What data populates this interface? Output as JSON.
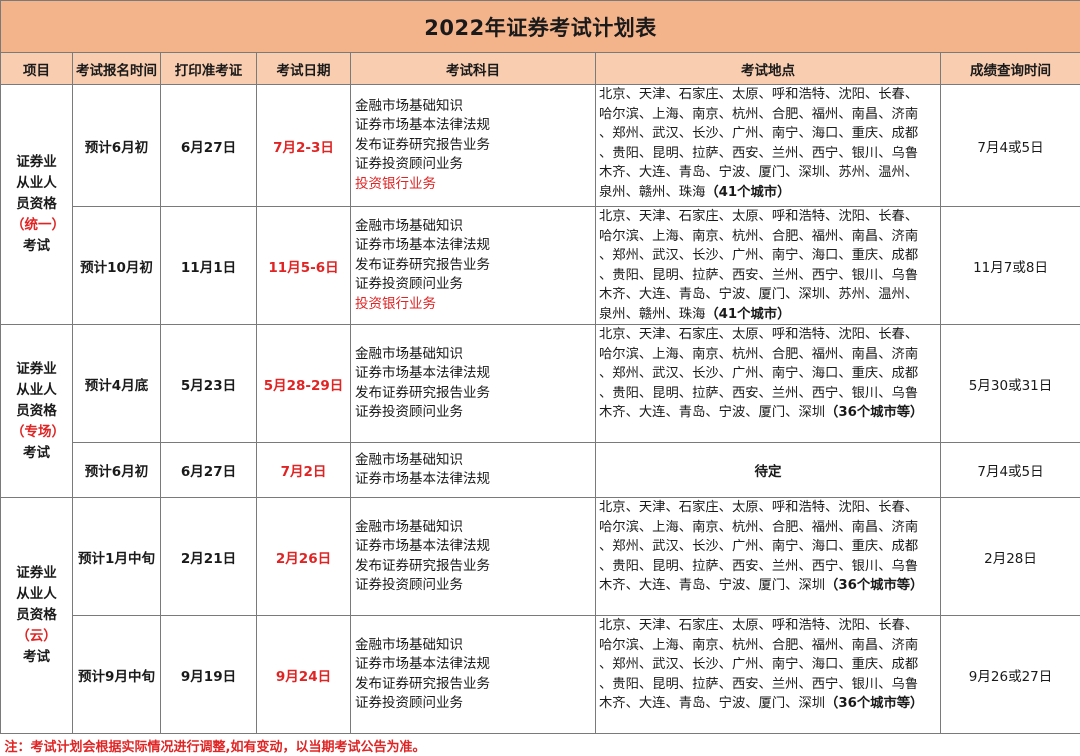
{
  "title": "2022年证券考试计划表",
  "headers": [
    "项目",
    "考试报名时间",
    "打印准考证",
    "考试日期",
    "考试科目",
    "考试地点",
    "成绩查询时间"
  ],
  "colors": {
    "title_bg": "#f3b38b",
    "header_bg": "#f8cdb0",
    "highlight": "#e02424"
  },
  "categories": [
    {
      "prefix": "证券业从业人员资格",
      "highlight": "（统一）",
      "suffix": "考试",
      "rows": [
        {
          "register": "预计6月初",
          "print": "6月27日",
          "date": "7月2-3日",
          "subjects": [
            "金融市场基础知识",
            "证券市场基本法律法规",
            "发布证券研究报告业务",
            "证券投资顾问业务"
          ],
          "subjects_highlight": "投资银行业务",
          "cities": [
            "北京、天津、石家庄、太原、呼和浩特、沈阳、长春、",
            "哈尔滨、上海、南京、杭州、合肥、福州、南昌、济南",
            "、郑州、武汉、长沙、广州、南宁、海口、重庆、成都",
            "、贵阳、昆明、拉萨、西安、兰州、西宁、银川、乌鲁",
            "木齐、大连、青岛、宁波、厦门、深圳、苏州、温州、",
            "泉州、赣州、珠海"
          ],
          "cities_note": "（41个城市）",
          "result": "7月4或5日"
        },
        {
          "register": "预计10月初",
          "print": "11月1日",
          "date": "11月5-6日",
          "subjects": [
            "金融市场基础知识",
            "证券市场基本法律法规",
            "发布证券研究报告业务",
            "证券投资顾问业务"
          ],
          "subjects_highlight": "投资银行业务",
          "cities": [
            "北京、天津、石家庄、太原、呼和浩特、沈阳、长春、",
            "哈尔滨、上海、南京、杭州、合肥、福州、南昌、济南",
            "、郑州、武汉、长沙、广州、南宁、海口、重庆、成都",
            "、贵阳、昆明、拉萨、西安、兰州、西宁、银川、乌鲁",
            "木齐、大连、青岛、宁波、厦门、深圳、苏州、温州、",
            "泉州、赣州、珠海"
          ],
          "cities_note": "（41个城市）",
          "result": "11月7或8日"
        }
      ]
    },
    {
      "prefix": "证券业从业人员资格",
      "highlight": "（专场）",
      "suffix": "考试",
      "rows": [
        {
          "register": "预计4月底",
          "print": "5月23日",
          "date": "5月28-29日",
          "subjects": [
            "金融市场基础知识",
            "证券市场基本法律法规",
            "发布证券研究报告业务",
            "证券投资顾问业务"
          ],
          "cities": [
            "北京、天津、石家庄、太原、呼和浩特、沈阳、长春、",
            "哈尔滨、上海、南京、杭州、合肥、福州、南昌、济南",
            "、郑州、武汉、长沙、广州、南宁、海口、重庆、成都",
            "、贵阳、昆明、拉萨、西安、兰州、西宁、银川、乌鲁",
            "木齐、大连、青岛、宁波、厦门、深圳"
          ],
          "cities_note": "（36个城市等）",
          "result": "5月30或31日"
        },
        {
          "register": "预计6月初",
          "print": "6月27日",
          "date": "7月2日",
          "subjects": [
            "金融市场基础知识",
            "证券市场基本法律法规"
          ],
          "cities_pending": "待定",
          "result": "7月4或5日"
        }
      ]
    },
    {
      "prefix": "证券业从业人员资格",
      "highlight": "（云）",
      "suffix": "考试",
      "rows": [
        {
          "register": "预计1月中旬",
          "print": "2月21日",
          "date": "2月26日",
          "subjects": [
            "金融市场基础知识",
            "证券市场基本法律法规",
            "发布证券研究报告业务",
            "证券投资顾问业务"
          ],
          "cities": [
            "北京、天津、石家庄、太原、呼和浩特、沈阳、长春、",
            "哈尔滨、上海、南京、杭州、合肥、福州、南昌、济南",
            "、郑州、武汉、长沙、广州、南宁、海口、重庆、成都",
            "、贵阳、昆明、拉萨、西安、兰州、西宁、银川、乌鲁",
            "木齐、大连、青岛、宁波、厦门、深圳"
          ],
          "cities_note": "（36个城市等）",
          "result": "2月28日"
        },
        {
          "register": "预计9月中旬",
          "print": "9月19日",
          "date": "9月24日",
          "subjects": [
            "金融市场基础知识",
            "证券市场基本法律法规",
            "发布证券研究报告业务",
            "证券投资顾问业务"
          ],
          "cities": [
            "北京、天津、石家庄、太原、呼和浩特、沈阳、长春、",
            "哈尔滨、上海、南京、杭州、合肥、福州、南昌、济南",
            "、郑州、武汉、长沙、广州、南宁、海口、重庆、成都",
            "、贵阳、昆明、拉萨、西安、兰州、西宁、银川、乌鲁",
            "木齐、大连、青岛、宁波、厦门、深圳"
          ],
          "cities_note": "（36个城市等）",
          "result": "9月26或27日"
        }
      ]
    }
  ],
  "note": "注：考试计划会根据实际情况进行调整,如有变动，以当期考试公告为准。"
}
